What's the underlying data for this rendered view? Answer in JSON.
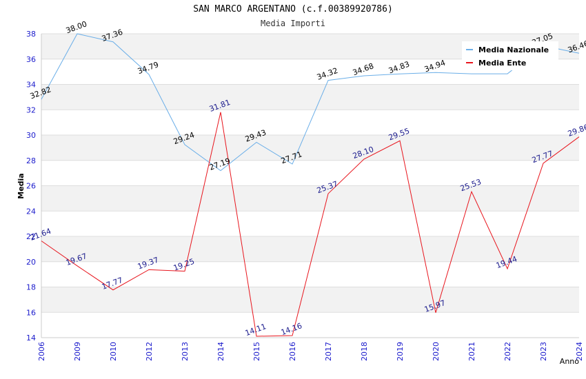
{
  "chart_data": {
    "type": "line",
    "title": "SAN MARCO ARGENTANO (c.f.00389920786)",
    "subtitle": "Media Importi",
    "xlabel": "Anno",
    "ylabel": "Media",
    "categories": [
      "2006",
      "2009",
      "2010",
      "2012",
      "2013",
      "2014",
      "2015",
      "2016",
      "2017",
      "2018",
      "2019",
      "2020",
      "2021",
      "2022",
      "2023",
      "2024"
    ],
    "ylim": [
      14,
      38
    ],
    "yticks": [
      14,
      16,
      18,
      20,
      22,
      24,
      26,
      28,
      30,
      32,
      34,
      36,
      38
    ],
    "grid": "horizontal-bands",
    "legend_position": "top-right",
    "series": [
      {
        "name": "Media Nazionale",
        "color": "#6aaee8",
        "label_color": "#000000",
        "values": [
          32.82,
          38.0,
          37.36,
          34.79,
          29.24,
          27.19,
          29.43,
          27.71,
          34.32,
          34.68,
          34.83,
          34.94,
          34.84,
          34.84,
          37.05,
          36.46
        ],
        "labels": [
          "32.82",
          "38.00",
          "37.36",
          "34.79",
          "29.24",
          "27.19",
          "29.43",
          "27.71",
          "34.32",
          "34.68",
          "34.83",
          "34.94",
          "",
          "",
          "37.05",
          "36.46"
        ]
      },
      {
        "name": "Media Ente",
        "color": "#e8141c",
        "label_color": "#1a1a8c",
        "values": [
          21.64,
          19.67,
          17.77,
          19.37,
          19.25,
          31.81,
          14.11,
          14.16,
          25.37,
          28.1,
          29.55,
          15.97,
          25.53,
          19.44,
          27.77,
          29.86
        ],
        "labels": [
          "21.64",
          "19.67",
          "17.77",
          "19.37",
          "19.25",
          "31.81",
          "14.11",
          "14.16",
          "25.37",
          "28.10",
          "29.55",
          "15.97",
          "25.53",
          "19.44",
          "27.77",
          "29.86"
        ]
      }
    ],
    "axis_label_color": "#1a1acc",
    "band_color": "#f2f2f2"
  }
}
